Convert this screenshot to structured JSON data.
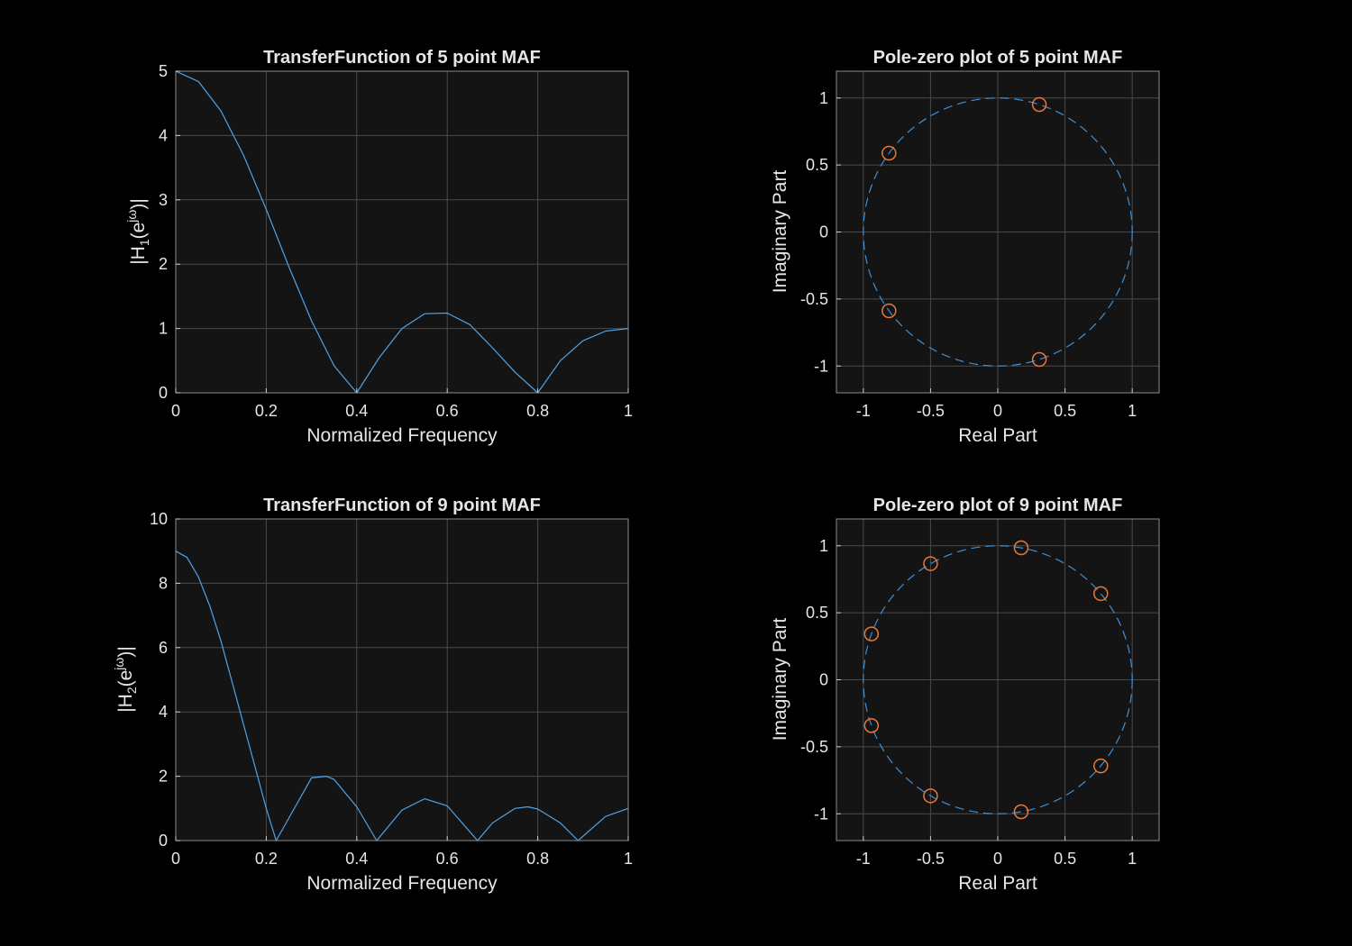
{
  "chart_data": [
    {
      "type": "line",
      "title": "TransferFunction of 5 point MAF",
      "xlabel": "Normalized Frequency",
      "ylabel": "|H₁(e^jω)|",
      "ylabel_parts": [
        "|H",
        "1",
        "(e",
        "jω",
        ")|"
      ],
      "xlim": [
        0,
        1
      ],
      "ylim": [
        0,
        5
      ],
      "xticks": [
        0,
        0.2,
        0.4,
        0.6,
        0.8,
        1
      ],
      "xtick_labels": [
        "0",
        "0.2",
        "0.4",
        "0.6",
        "0.8",
        "1"
      ],
      "yticks": [
        0,
        1,
        2,
        3,
        4,
        5
      ],
      "ytick_labels": [
        "0",
        "1",
        "2",
        "3",
        "4",
        "5"
      ],
      "grid": true,
      "line_color": "#4fa3e8",
      "series": [
        {
          "x": [
            0,
            0.05,
            0.1,
            0.15,
            0.2,
            0.25,
            0.3,
            0.35,
            0.4,
            0.45,
            0.5,
            0.55,
            0.6,
            0.65,
            0.7,
            0.75,
            0.8,
            0.85,
            0.9,
            0.95,
            1
          ],
          "values": [
            5,
            4.84,
            4.38,
            3.69,
            2.85,
            1.96,
            1.12,
            0.42,
            0,
            0.55,
            1,
            1.23,
            1.24,
            1.06,
            0.7,
            0.32,
            0,
            0.5,
            0.81,
            0.96,
            1
          ]
        }
      ]
    },
    {
      "type": "scatter",
      "title": "Pole-zero plot of 5 point MAF",
      "xlabel": "Real Part",
      "ylabel": "Imaginary Part",
      "xlim": [
        -1.2,
        1.2
      ],
      "ylim": [
        -1.2,
        1.2
      ],
      "xticks": [
        -1,
        -0.5,
        0,
        0.5,
        1
      ],
      "xtick_labels": [
        "-1",
        "-0.5",
        "0",
        "0.5",
        "1"
      ],
      "yticks": [
        -1,
        -0.5,
        0,
        0.5,
        1
      ],
      "ytick_labels": [
        "-1",
        "-0.5",
        "0",
        "0.5",
        "1"
      ],
      "grid": true,
      "unit_circle": true,
      "circle_color": "#3f8fd6",
      "marker_color": "#e8793a",
      "zeros": [
        {
          "re": 0.309,
          "im": 0.951
        },
        {
          "re": -0.809,
          "im": 0.588
        },
        {
          "re": -0.809,
          "im": -0.588
        },
        {
          "re": 0.309,
          "im": -0.951
        }
      ]
    },
    {
      "type": "line",
      "title": "TransferFunction of 9 point MAF",
      "xlabel": "Normalized Frequency",
      "ylabel": "|H₂(e^jω)|",
      "ylabel_parts": [
        "|H",
        "2",
        "(e",
        "jω",
        ")|"
      ],
      "xlim": [
        0,
        1
      ],
      "ylim": [
        0,
        10
      ],
      "xticks": [
        0,
        0.2,
        0.4,
        0.6,
        0.8,
        1
      ],
      "xtick_labels": [
        "0",
        "0.2",
        "0.4",
        "0.6",
        "0.8",
        "1"
      ],
      "yticks": [
        0,
        2,
        4,
        6,
        8,
        10
      ],
      "ytick_labels": [
        "0",
        "2",
        "4",
        "6",
        "8",
        "10"
      ],
      "grid": true,
      "line_color": "#4fa3e8",
      "series": [
        {
          "x": [
            0,
            0.025,
            0.05,
            0.075,
            0.1,
            0.125,
            0.15,
            0.175,
            0.2,
            0.222,
            0.25,
            0.3,
            0.333,
            0.35,
            0.4,
            0.444,
            0.5,
            0.55,
            0.6,
            0.667,
            0.7,
            0.75,
            0.778,
            0.8,
            0.85,
            0.889,
            0.95,
            1
          ],
          "values": [
            9,
            8.8,
            8.2,
            7.3,
            6.2,
            4.9,
            3.6,
            2.3,
            1.0,
            0,
            0.7,
            1.95,
            2.0,
            1.9,
            1.05,
            0,
            0.95,
            1.3,
            1.08,
            0,
            0.55,
            1.0,
            1.05,
            0.98,
            0.55,
            0,
            0.75,
            1
          ]
        }
      ]
    },
    {
      "type": "scatter",
      "title": "Pole-zero plot of 9 point MAF",
      "xlabel": "Real Part",
      "ylabel": "Imaginary Part",
      "xlim": [
        -1.2,
        1.2
      ],
      "ylim": [
        -1.2,
        1.2
      ],
      "xticks": [
        -1,
        -0.5,
        0,
        0.5,
        1
      ],
      "xtick_labels": [
        "-1",
        "-0.5",
        "0",
        "0.5",
        "1"
      ],
      "yticks": [
        -1,
        -0.5,
        0,
        0.5,
        1
      ],
      "ytick_labels": [
        "-1",
        "-0.5",
        "0",
        "0.5",
        "1"
      ],
      "grid": true,
      "unit_circle": true,
      "circle_color": "#3f8fd6",
      "marker_color": "#e8793a",
      "zeros": [
        {
          "re": 0.174,
          "im": 0.985
        },
        {
          "re": -0.5,
          "im": 0.866
        },
        {
          "re": 0.766,
          "im": 0.643
        },
        {
          "re": -0.94,
          "im": 0.342
        },
        {
          "re": -0.94,
          "im": -0.342
        },
        {
          "re": 0.766,
          "im": -0.643
        },
        {
          "re": -0.5,
          "im": -0.866
        },
        {
          "re": 0.174,
          "im": -0.985
        }
      ]
    }
  ]
}
